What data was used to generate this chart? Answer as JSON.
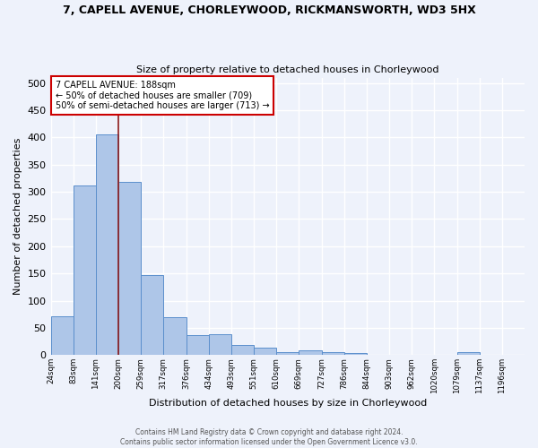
{
  "title_line1": "7, CAPELL AVENUE, CHORLEYWOOD, RICKMANSWORTH, WD3 5HX",
  "title_line2": "Size of property relative to detached houses in Chorleywood",
  "xlabel": "Distribution of detached houses by size in Chorleywood",
  "ylabel": "Number of detached properties",
  "bin_labels": [
    "24sqm",
    "83sqm",
    "141sqm",
    "200sqm",
    "259sqm",
    "317sqm",
    "376sqm",
    "434sqm",
    "493sqm",
    "551sqm",
    "610sqm",
    "669sqm",
    "727sqm",
    "786sqm",
    "844sqm",
    "903sqm",
    "962sqm",
    "1020sqm",
    "1079sqm",
    "1137sqm",
    "1196sqm"
  ],
  "bar_heights": [
    72,
    311,
    406,
    319,
    147,
    70,
    36,
    38,
    19,
    13,
    6,
    8,
    5,
    3,
    0,
    0,
    0,
    0,
    5,
    0,
    0
  ],
  "bar_color": "#aec6e8",
  "bar_edge_color": "#5b8fcc",
  "background_color": "#eef2fb",
  "grid_color": "#ffffff",
  "vline_at_bar": 3,
  "vline_color": "#8b1a1a",
  "annotation_text": "7 CAPELL AVENUE: 188sqm\n← 50% of detached houses are smaller (709)\n50% of semi-detached houses are larger (713) →",
  "annotation_box_color": "#ffffff",
  "annotation_box_edge": "#cc0000",
  "footer_text": "Contains HM Land Registry data © Crown copyright and database right 2024.\nContains public sector information licensed under the Open Government Licence v3.0.",
  "ylim": [
    0,
    510
  ],
  "yticks": [
    0,
    50,
    100,
    150,
    200,
    250,
    300,
    350,
    400,
    450,
    500
  ]
}
